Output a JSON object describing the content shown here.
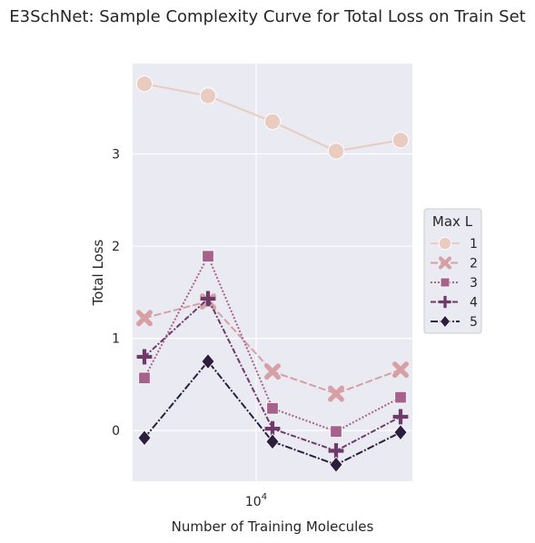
{
  "chart_data": {
    "type": "line",
    "title": "E3SchNet: Sample Complexity Curve for Total Loss on Train Set",
    "xlabel": "Number of Training Molecules",
    "ylabel": "Total Loss",
    "x_scale": "log",
    "x_tick_label": {
      "base": "10",
      "exponent": "4"
    },
    "y_ticks": [
      "0",
      "1",
      "2",
      "3"
    ],
    "ylim": [
      -0.55,
      3.98
    ],
    "grid": true,
    "legend": {
      "title": "Max L",
      "placement": "right"
    },
    "series": [
      {
        "name": "1",
        "values": [
          3.76,
          3.63,
          3.35,
          3.03,
          3.15
        ],
        "color": "#eacbc0",
        "dash": "",
        "marker": "circle"
      },
      {
        "name": "2",
        "values": [
          1.22,
          1.4,
          0.64,
          0.4,
          0.66
        ],
        "color": "#d6a0a4",
        "dash": "8,3",
        "marker": "x"
      },
      {
        "name": "3",
        "values": [
          0.57,
          1.89,
          0.24,
          -0.01,
          0.36
        ],
        "color": "#a6628a",
        "dash": "2,2",
        "marker": "square"
      },
      {
        "name": "4",
        "values": [
          0.8,
          1.43,
          0.02,
          -0.22,
          0.15
        ],
        "color": "#6d3a6a",
        "dash": "6,2,2,2",
        "marker": "plus"
      },
      {
        "name": "5",
        "values": [
          -0.08,
          0.75,
          -0.12,
          -0.37,
          -0.02
        ],
        "color": "#2d1e3e",
        "dash": "8,2,2,2",
        "marker": "diamond"
      }
    ]
  }
}
